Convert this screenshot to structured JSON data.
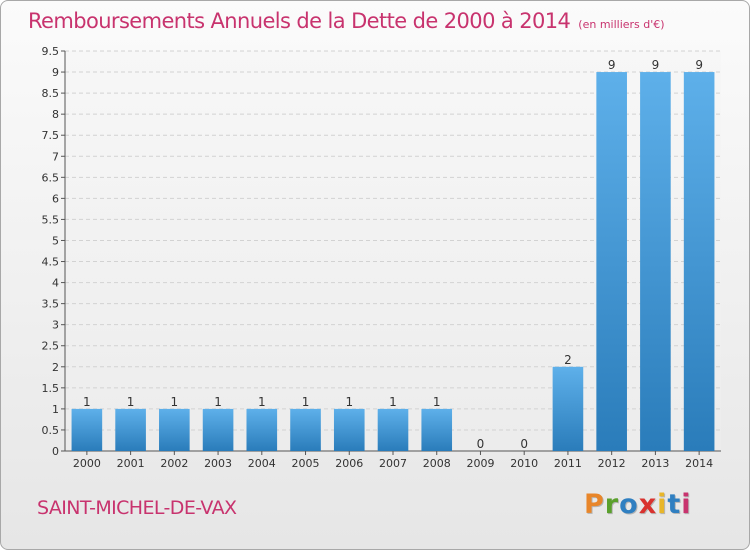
{
  "header": {
    "title": "Remboursements Annuels de la Dette de 2000 à 2014",
    "unit": "(en milliers d'€)"
  },
  "footer": {
    "commune": "SAINT-MICHEL-DE-VAX",
    "logo": [
      "P",
      "r",
      "o",
      "x",
      "i",
      "t",
      "i"
    ],
    "logo_colors": [
      "#e8862a",
      "#5aa02c",
      "#2f7fc1",
      "#d9322e",
      "#e8b62a",
      "#2f7fc1",
      "#c8336e"
    ]
  },
  "colors": {
    "title": "#c8336e",
    "bar_light": "#5eb0ea",
    "bar_dark": "#2a7cba"
  },
  "chart_data": {
    "type": "bar",
    "title": "Remboursements Annuels de la Dette de 2000 à 2014",
    "xlabel": "",
    "ylabel": "",
    "categories": [
      "2000",
      "2001",
      "2002",
      "2003",
      "2004",
      "2005",
      "2006",
      "2007",
      "2008",
      "2009",
      "2010",
      "2011",
      "2012",
      "2013",
      "2014"
    ],
    "values": [
      1,
      1,
      1,
      1,
      1,
      1,
      1,
      1,
      1,
      0,
      0,
      2,
      9,
      9,
      9
    ],
    "value_labels": [
      "1",
      "1",
      "1",
      "1",
      "1",
      "1",
      "1",
      "1",
      "1",
      "0",
      "0",
      "2",
      "9",
      "9",
      "9"
    ],
    "ylim": [
      0,
      9.5
    ],
    "yticks": [
      0,
      0.5,
      1,
      1.5,
      2,
      2.5,
      3,
      3.5,
      4,
      4.5,
      5,
      5.5,
      6,
      6.5,
      7,
      7.5,
      8,
      8.5,
      9,
      9.5
    ],
    "ytick_labels": [
      "0",
      "0.5",
      "1",
      "1.5",
      "2",
      "2.5",
      "3",
      "3.5",
      "4",
      "4.5",
      "5",
      "5.5",
      "6",
      "6.5",
      "7",
      "7.5",
      "8",
      "8.5",
      "9",
      "9.5"
    ],
    "grid": true,
    "legend": "none"
  }
}
